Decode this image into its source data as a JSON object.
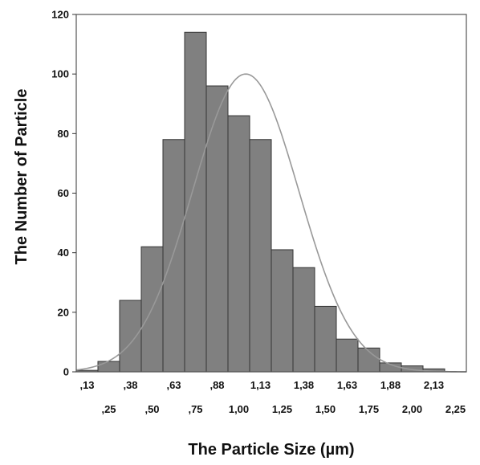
{
  "chart_data": {
    "type": "bar",
    "subtype": "histogram",
    "xlabel": "The Particle Size (µm)",
    "ylabel": "The Number of Particle",
    "ylim": [
      0,
      120
    ],
    "yticks": [
      0,
      20,
      40,
      60,
      80,
      100,
      120
    ],
    "xlim": [
      0.0625,
      2.3125
    ],
    "bin_width": 0.125,
    "bins": [
      {
        "x": 0.125,
        "value": 0.5
      },
      {
        "x": 0.25,
        "value": 3.5
      },
      {
        "x": 0.375,
        "value": 24
      },
      {
        "x": 0.5,
        "value": 42
      },
      {
        "x": 0.625,
        "value": 78
      },
      {
        "x": 0.75,
        "value": 114
      },
      {
        "x": 0.875,
        "value": 96
      },
      {
        "x": 1.0,
        "value": 86
      },
      {
        "x": 1.125,
        "value": 78
      },
      {
        "x": 1.25,
        "value": 41
      },
      {
        "x": 1.375,
        "value": 35
      },
      {
        "x": 1.5,
        "value": 22
      },
      {
        "x": 1.625,
        "value": 11
      },
      {
        "x": 1.75,
        "value": 8
      },
      {
        "x": 1.875,
        "value": 3
      },
      {
        "x": 2.0,
        "value": 2
      },
      {
        "x": 2.125,
        "value": 1
      }
    ],
    "x_tick_labels_upper": [
      {
        "x": 0.125,
        "label": ",13"
      },
      {
        "x": 0.375,
        "label": ",38"
      },
      {
        "x": 0.625,
        "label": ",63"
      },
      {
        "x": 0.875,
        "label": ",88"
      },
      {
        "x": 1.125,
        "label": "1,13"
      },
      {
        "x": 1.375,
        "label": "1,38"
      },
      {
        "x": 1.625,
        "label": "1,63"
      },
      {
        "x": 1.875,
        "label": "1,88"
      },
      {
        "x": 2.125,
        "label": "2,13"
      }
    ],
    "x_tick_labels_lower": [
      {
        "x": 0.25,
        "label": ",25"
      },
      {
        "x": 0.5,
        "label": ",50"
      },
      {
        "x": 0.75,
        "label": ",75"
      },
      {
        "x": 1.0,
        "label": "1,00"
      },
      {
        "x": 1.25,
        "label": "1,25"
      },
      {
        "x": 1.5,
        "label": "1,50"
      },
      {
        "x": 1.75,
        "label": "1,75"
      },
      {
        "x": 2.0,
        "label": "2,00"
      },
      {
        "x": 2.25,
        "label": "2,25"
      }
    ],
    "fit_curve": {
      "type": "normal",
      "mean": 1.04,
      "peak": 100
    },
    "bar_color": "#808080",
    "bar_edge_color": "#333333",
    "curve_color": "#999999",
    "grid": false
  }
}
